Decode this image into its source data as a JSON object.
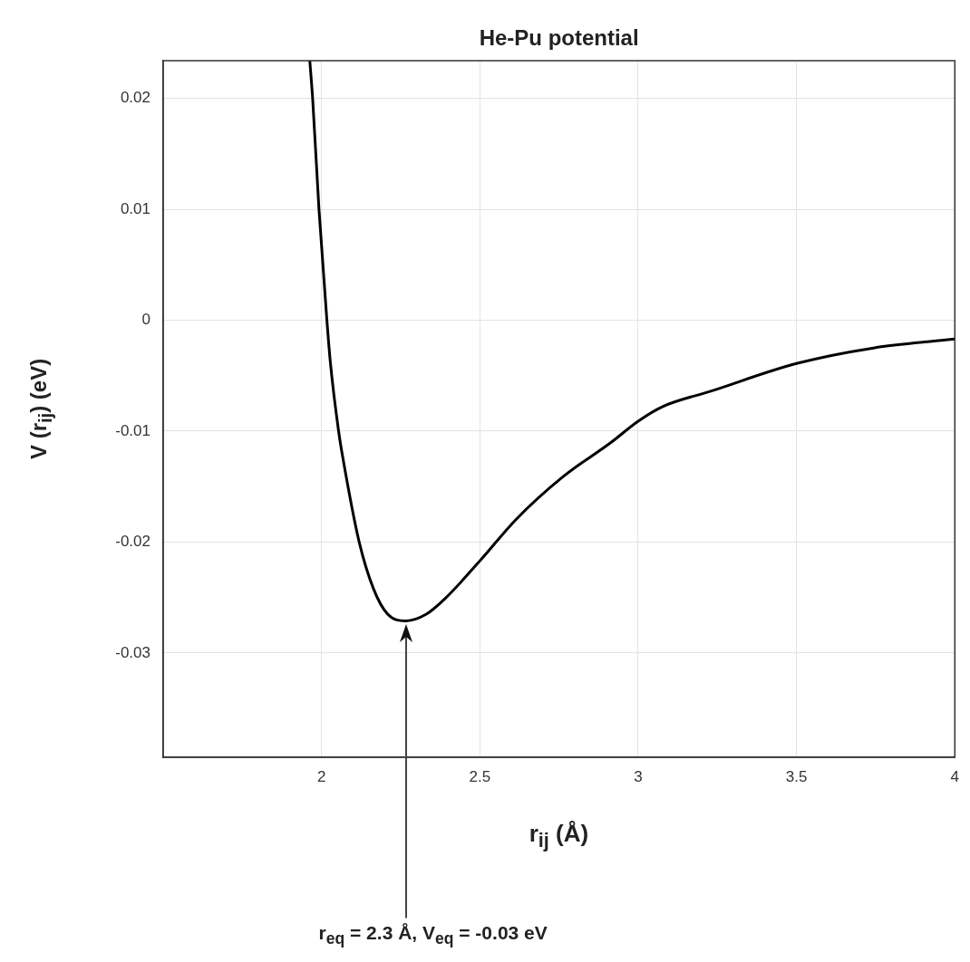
{
  "chart_data": {
    "type": "line",
    "title": "He-Pu potential",
    "xlabel": "r$_{ij}$ (Å)",
    "ylabel": "V (r$_{ij}$) (eV)",
    "xlim": [
      1.5,
      4.0
    ],
    "ylim": [
      -0.0394,
      0.0234
    ],
    "xticks": [
      2,
      2.5,
      3,
      3.5,
      4
    ],
    "yticks": [
      -0.03,
      -0.02,
      -0.01,
      0,
      0.01,
      0.02
    ],
    "grid": true,
    "marker": "none",
    "series": [
      {
        "color": "#000000",
        "x": [
          1.963,
          1.972,
          1.992,
          2.017,
          2.028,
          2.054,
          2.068,
          2.119,
          2.164,
          2.209,
          2.266,
          2.331,
          2.39,
          2.503,
          2.613,
          2.763,
          2.915,
          3.0,
          3.076,
          3.229,
          3.5,
          3.743,
          4.0
        ],
        "values": [
          0.0234,
          0.02,
          0.01,
          0,
          -0.0038,
          -0.01,
          -0.0125,
          -0.02,
          -0.0242,
          -0.0265,
          -0.0271,
          -0.0265,
          -0.0251,
          -0.0216,
          -0.018,
          -0.0141,
          -0.011,
          -0.0091,
          -0.0078,
          -0.0064,
          -0.0039,
          -0.0025,
          -0.0017
        ]
      }
    ],
    "annotations": [
      "r$_{eq}$ = 2.3 Å,  V$_{eq}$ =  -0.03 eV"
    ]
  }
}
